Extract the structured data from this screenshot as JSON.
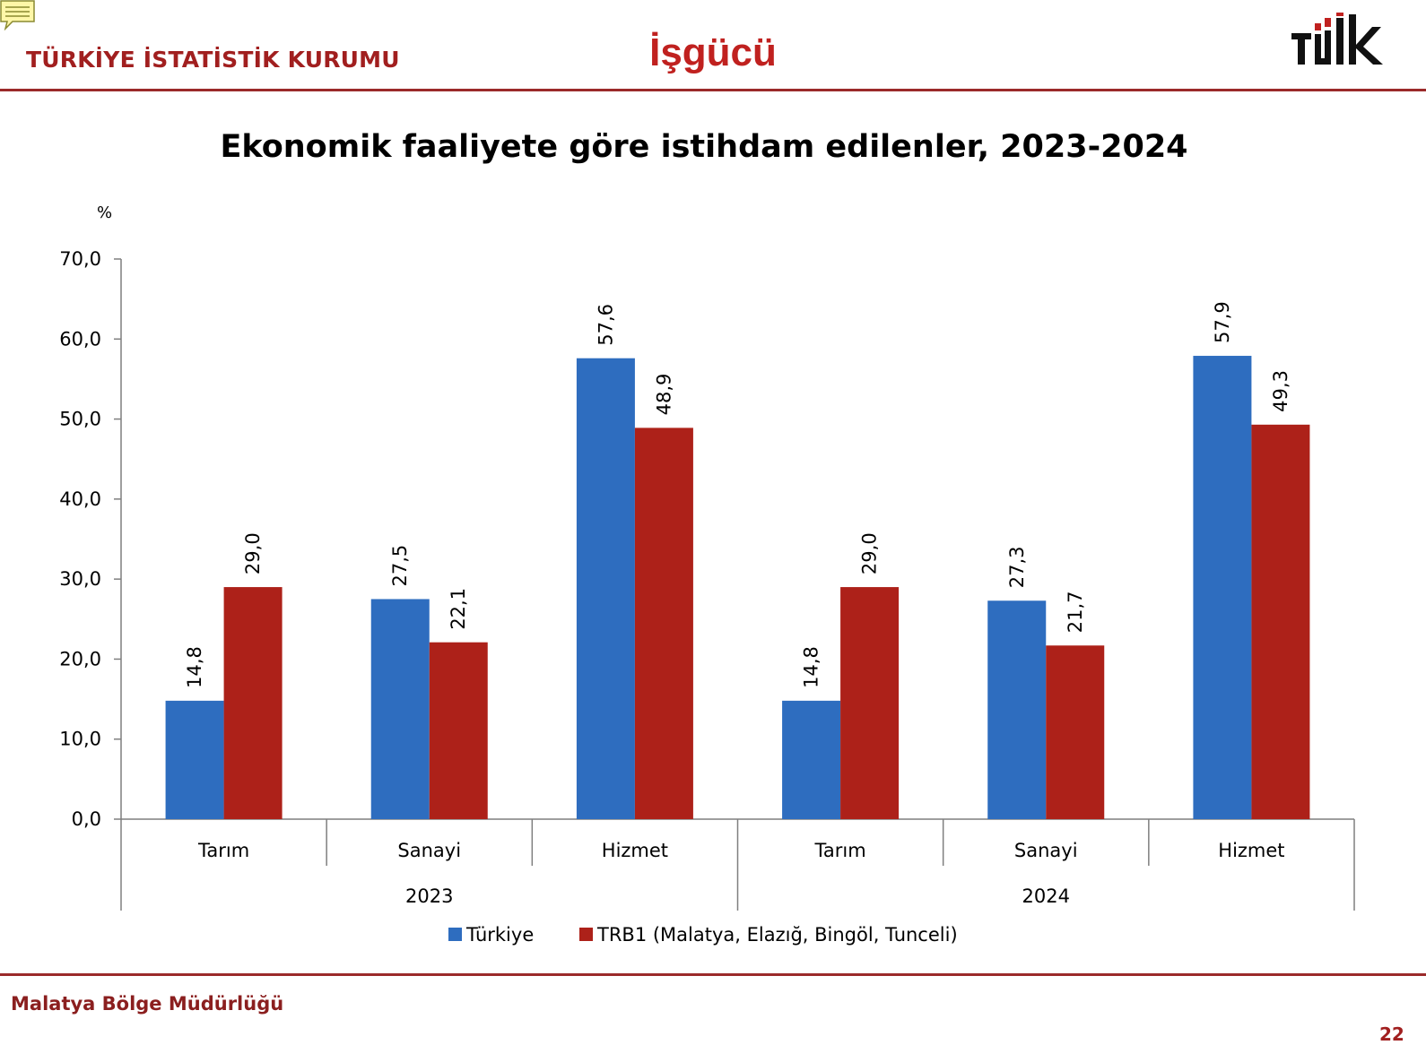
{
  "header": {
    "org_name": "TÜRKİYE İSTATİSTİK KURUMU",
    "page_title": "İşgücü",
    "logo_text": "TÜİK"
  },
  "footer": {
    "org_name": "Malatya Bölge Müdürlüğü",
    "page_number": "22"
  },
  "colors": {
    "accent": "#9b2a2a",
    "turkiye": "#2e6dbf",
    "trb1": "#ad2119"
  },
  "chart_data": {
    "type": "bar",
    "title": "Ekonomik faaliyete göre istihdam edilenler, 2023-2024",
    "ylabel": "%",
    "ylim": [
      0,
      70
    ],
    "yticks": [
      0,
      10,
      20,
      30,
      40,
      50,
      60,
      70
    ],
    "ytick_labels": [
      "0,0",
      "10,0",
      "20,0",
      "30,0",
      "40,0",
      "50,0",
      "60,0",
      "70,0"
    ],
    "groups": [
      "2023",
      "2024"
    ],
    "categories": [
      "Tarım",
      "Sanayi",
      "Hizmet",
      "Tarım",
      "Sanayi",
      "Hizmet"
    ],
    "category_group": [
      "2023",
      "2023",
      "2023",
      "2024",
      "2024",
      "2024"
    ],
    "series": [
      {
        "name": "Türkiye",
        "color": "#2e6dbf",
        "values": [
          14.8,
          27.5,
          57.6,
          14.8,
          27.3,
          57.9
        ],
        "labels": [
          "14,8",
          "27,5",
          "57,6",
          "14,8",
          "27,3",
          "57,9"
        ]
      },
      {
        "name": "TRB1 (Malatya, Elazığ, Bingöl, Tunceli)",
        "color": "#ad2119",
        "values": [
          29.0,
          22.1,
          48.9,
          29.0,
          21.7,
          49.3
        ],
        "labels": [
          "29,0",
          "22,1",
          "48,9",
          "29,0",
          "21,7",
          "49,3"
        ]
      }
    ],
    "grid": false,
    "legend": "bottom"
  }
}
